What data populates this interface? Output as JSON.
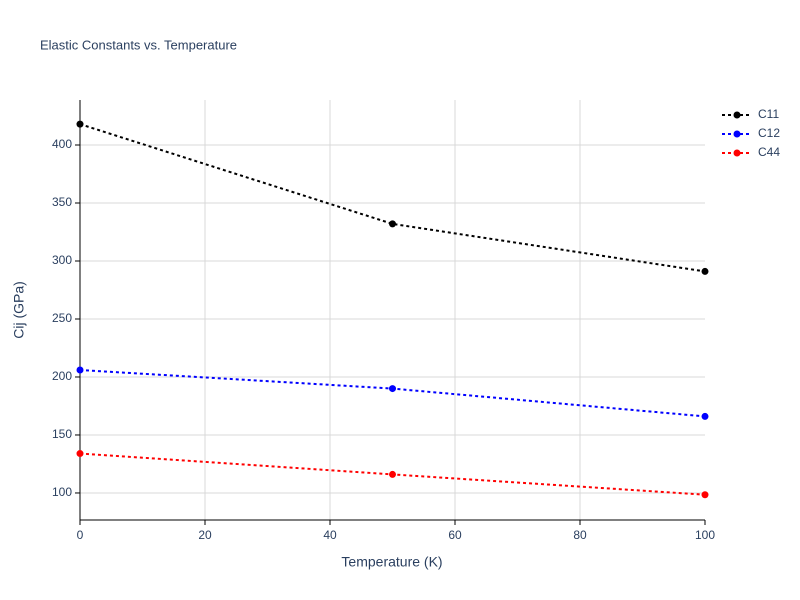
{
  "chart_data": {
    "type": "line",
    "title": "Elastic Constants vs. Temperature",
    "x_label": "Temperature (K)",
    "y_label": "Cij (GPa)",
    "x": [
      0,
      50,
      100
    ],
    "series": [
      {
        "name": "C11",
        "color": "#000000",
        "values": [
          418,
          332,
          291
        ]
      },
      {
        "name": "C12",
        "color": "#0000ff",
        "values": [
          206,
          190,
          166
        ]
      },
      {
        "name": "C44",
        "color": "#ff0000",
        "values": [
          134,
          116,
          98.5
        ]
      }
    ],
    "xlim": [
      0,
      100
    ],
    "xticks": [
      0,
      20,
      40,
      60,
      80,
      100
    ],
    "ylim": [
      76.7,
      438.8
    ],
    "yticks": [
      100,
      150,
      200,
      250,
      300,
      350,
      400
    ],
    "grid": true,
    "legend": "top-right"
  }
}
